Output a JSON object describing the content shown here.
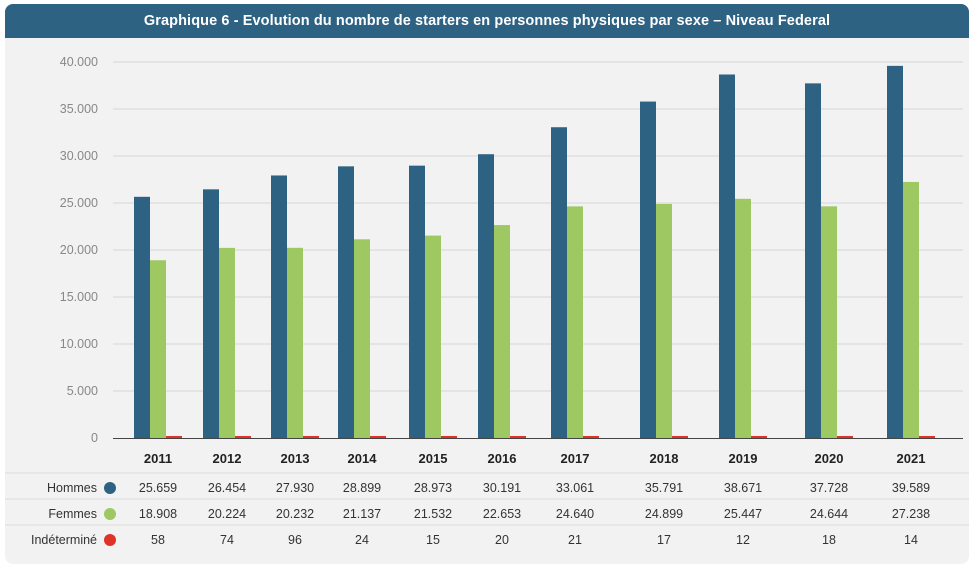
{
  "title": "Graphique 6 - Evolution du nombre de starters en personnes physiques par sexe – Niveau Federal",
  "colors": {
    "header": "#2e6283",
    "hommes": "#2e6283",
    "femmes": "#9dc862",
    "indetermine": "#e03228",
    "background": "#f2f2f2"
  },
  "chart_data": {
    "type": "bar",
    "categories": [
      "2011",
      "2012",
      "2013",
      "2014",
      "2015",
      "2016",
      "2017",
      "2018",
      "2019",
      "2020",
      "2021"
    ],
    "series": [
      {
        "name": "Hommes",
        "values": [
          25659,
          26454,
          27930,
          28899,
          28973,
          30191,
          33061,
          35791,
          38671,
          37728,
          39589
        ],
        "labels": [
          "25.659",
          "26.454",
          "27.930",
          "28.899",
          "28.973",
          "30.191",
          "33.061",
          "35.791",
          "38.671",
          "37.728",
          "39.589"
        ]
      },
      {
        "name": "Femmes",
        "values": [
          18908,
          20224,
          20232,
          21137,
          21532,
          22653,
          24640,
          24899,
          25447,
          24644,
          27238
        ],
        "labels": [
          "18.908",
          "20.224",
          "20.232",
          "21.137",
          "21.532",
          "22.653",
          "24.640",
          "24.899",
          "25.447",
          "24.644",
          "27.238"
        ]
      },
      {
        "name": "Indéterminé",
        "values": [
          58,
          74,
          96,
          24,
          15,
          20,
          21,
          17,
          12,
          18,
          14
        ],
        "labels": [
          "58",
          "74",
          "96",
          "24",
          "15",
          "20",
          "21",
          "17",
          "12",
          "18",
          "14"
        ]
      }
    ],
    "ylim": [
      0,
      40000
    ],
    "yticks": [
      0,
      5000,
      10000,
      15000,
      20000,
      25000,
      30000,
      35000,
      40000
    ],
    "ytick_labels": [
      "0",
      "5.000",
      "10.000",
      "15.000",
      "20.000",
      "25.000",
      "30.000",
      "35.000",
      "40.000"
    ],
    "grid": true,
    "legend": "data-table-below"
  }
}
